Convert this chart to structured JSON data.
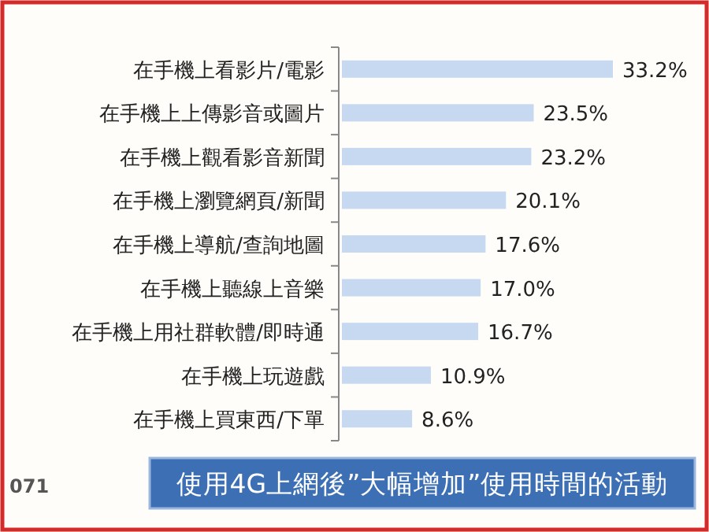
{
  "chart_data": {
    "type": "bar",
    "orientation": "horizontal",
    "title": "使用4G上網後”大幅增加”使用時間的活動",
    "annotations": [
      "071"
    ],
    "categories": [
      "在手機上看影片/電影",
      "在手機上上傳影音或圖片",
      "在手機上觀看影音新聞",
      "在手機上瀏覽網頁/新聞",
      "在手機上導航/查詢地圖",
      "在手機上聽線上音樂",
      "在手機上用社群軟體/即時通",
      "在手機上玩遊戲",
      "在手機上買東西/下單"
    ],
    "values": [
      33.2,
      23.5,
      23.2,
      20.1,
      17.6,
      17.0,
      16.7,
      10.9,
      8.6
    ],
    "value_labels": [
      "33.2%",
      "23.5%",
      "23.2%",
      "20.1%",
      "17.6%",
      "17.0%",
      "16.7%",
      "10.9%",
      "8.6%"
    ],
    "color": "#c6d9f0"
  }
}
